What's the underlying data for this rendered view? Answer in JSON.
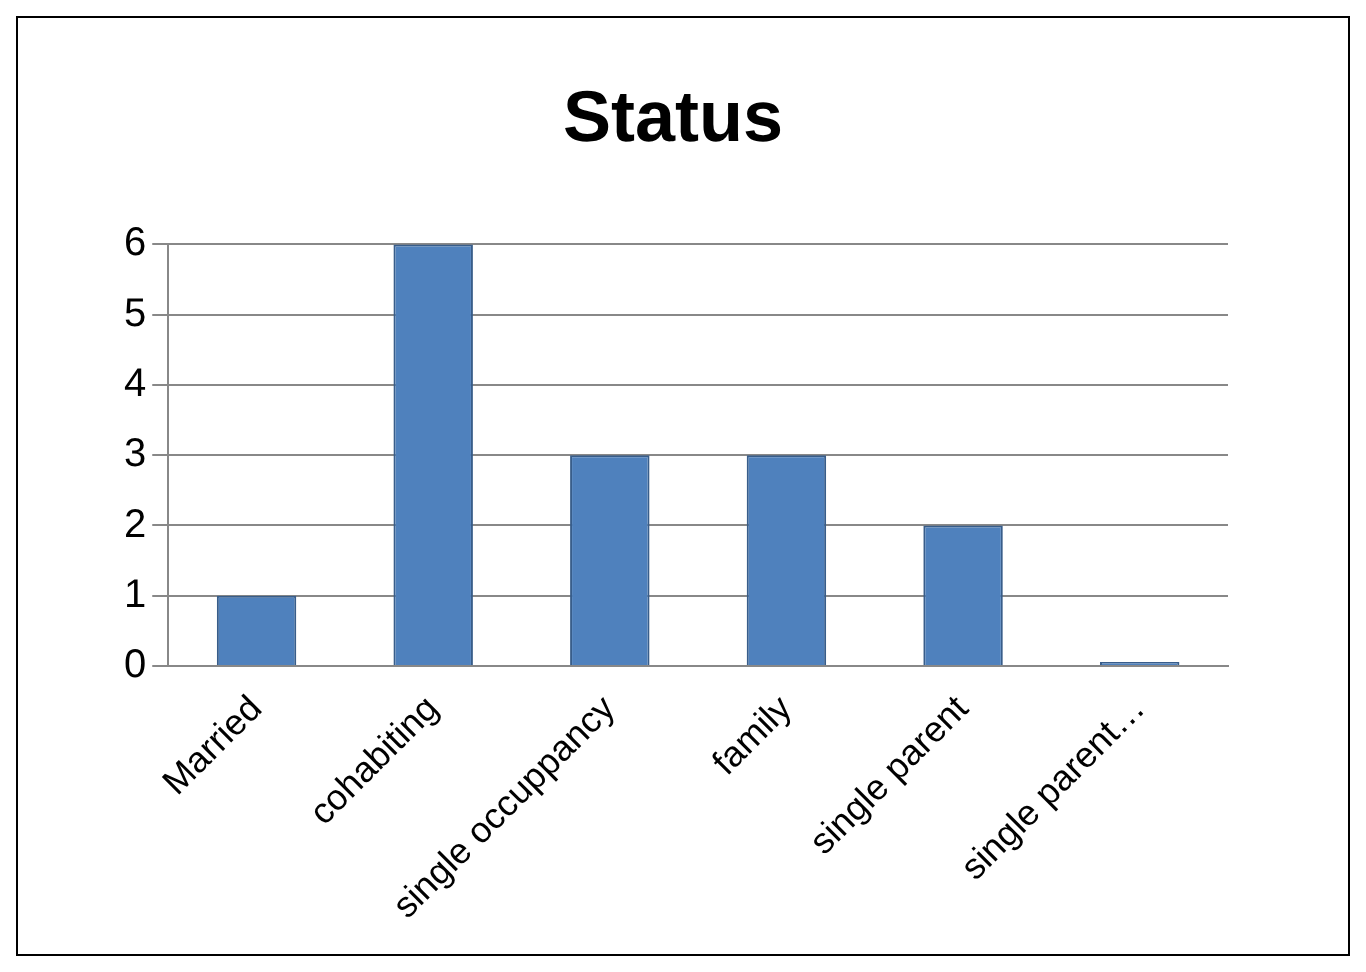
{
  "chart_data": {
    "type": "bar",
    "title": "Status",
    "categories": [
      "Married",
      "cohabiting",
      "single occuppancy",
      "family",
      "single parent",
      "single parent…"
    ],
    "values": [
      1,
      6,
      3,
      3,
      2,
      0
    ],
    "color": "#4f81bd",
    "ylim": [
      0,
      6
    ],
    "yticks": [
      0,
      1,
      2,
      3,
      4,
      5,
      6
    ],
    "grid": "y",
    "legend": false
  }
}
